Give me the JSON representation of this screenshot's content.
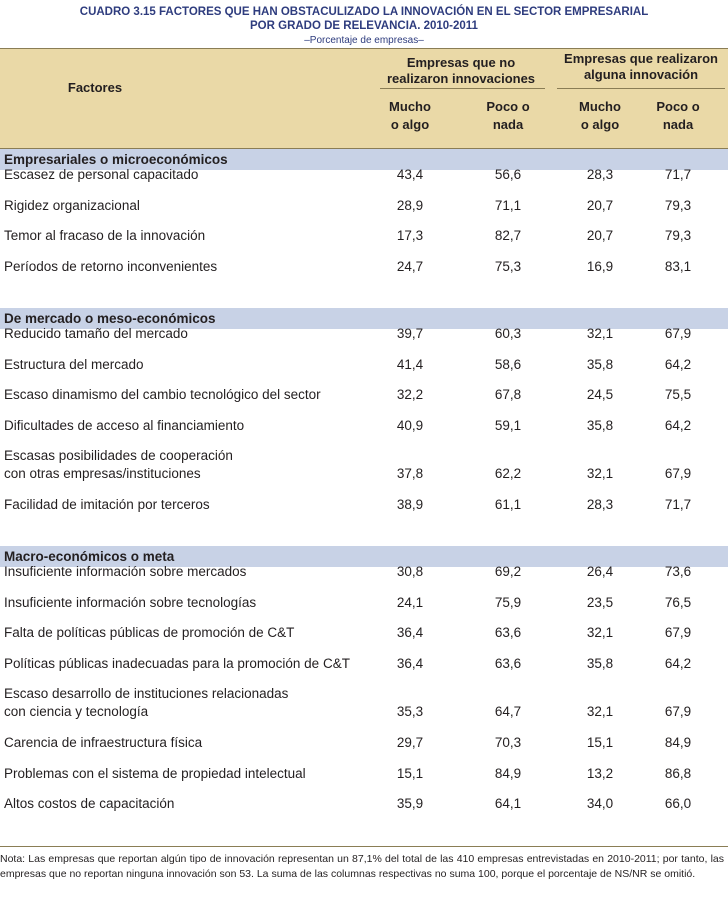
{
  "header": {
    "title": [
      "CUADRO 3.15 FACTORES QUE HAN OBSTACULIZADO LA INNOVACIÓN EN EL SECTOR EMPRESARIAL",
      "POR GRADO DE RELEVANCIA. 2010-2011"
    ],
    "subtitle": "–Porcentaje de empresas–"
  },
  "table": {
    "first_column": "Factores",
    "groups": [
      {
        "label": [
          "Empresas que no",
          "realizaron innovaciones"
        ],
        "columns": [
          [
            "Mucho",
            "o algo"
          ],
          [
            "Poco o",
            "nada"
          ]
        ]
      },
      {
        "label": [
          "Empresas que realizaron",
          "alguna innovación"
        ],
        "columns": [
          [
            "Mucho",
            "o algo"
          ],
          [
            "Poco o",
            "nada"
          ]
        ]
      }
    ],
    "sections": [
      {
        "title": "Empresariales o microeconómicos",
        "rows": [
          {
            "label": "Escasez de personal capacitado",
            "values": [
              "43,4",
              "56,6",
              "28,3",
              "71,7"
            ]
          },
          {
            "label": "Rigidez organizacional",
            "values": [
              "28,9",
              "71,1",
              "20,7",
              "79,3"
            ]
          },
          {
            "label": "Temor al fracaso de la innovación",
            "values": [
              "17,3",
              "82,7",
              "20,7",
              "79,3"
            ]
          },
          {
            "label": "Períodos de retorno inconvenientes",
            "values": [
              "24,7",
              "75,3",
              "16,9",
              "83,1"
            ]
          }
        ]
      },
      {
        "title": "De mercado o meso-económicos",
        "rows": [
          {
            "label": "Reducido tamaño del mercado",
            "values": [
              "39,7",
              "60,3",
              "32,1",
              "67,9"
            ]
          },
          {
            "label": "Estructura del mercado",
            "values": [
              "41,4",
              "58,6",
              "35,8",
              "64,2"
            ]
          },
          {
            "label": "Escaso dinamismo del cambio tecnológico del sector",
            "values": [
              "32,2",
              "67,8",
              "24,5",
              "75,5"
            ]
          },
          {
            "label": "Dificultades de acceso al financiamiento",
            "values": [
              "40,9",
              "59,1",
              "35,8",
              "64,2"
            ]
          },
          {
            "label": [
              "Escasas posibilidades de cooperación",
              "con otras empresas/instituciones"
            ],
            "values": [
              "37,8",
              "62,2",
              "32,1",
              "67,9"
            ]
          },
          {
            "label": "Facilidad de imitación por terceros",
            "values": [
              "38,9",
              "61,1",
              "28,3",
              "71,7"
            ]
          }
        ]
      },
      {
        "title": "Macro-económicos o meta",
        "rows": [
          {
            "label": "Insuficiente información sobre mercados",
            "values": [
              "30,8",
              "69,2",
              "26,4",
              "73,6"
            ]
          },
          {
            "label": "Insuficiente información sobre tecnologías",
            "values": [
              "24,1",
              "75,9",
              "23,5",
              "76,5"
            ]
          },
          {
            "label": "Falta de políticas públicas de promoción de C&T",
            "values": [
              "36,4",
              "63,6",
              "32,1",
              "67,9"
            ]
          },
          {
            "label": "Políticas públicas inadecuadas para la promoción de C&T",
            "values": [
              "36,4",
              "63,6",
              "35,8",
              "64,2"
            ]
          },
          {
            "label": [
              "Escaso desarrollo de instituciones relacionadas",
              "con ciencia y tecnología"
            ],
            "values": [
              "35,3",
              "64,7",
              "32,1",
              "67,9"
            ]
          },
          {
            "label": "Carencia de infraestructura física",
            "values": [
              "29,7",
              "70,3",
              "15,1",
              "84,9"
            ]
          },
          {
            "label": "Problemas con el sistema de propiedad intelectual",
            "values": [
              "15,1",
              "84,9",
              "13,2",
              "86,8"
            ]
          },
          {
            "label": "Altos costos de capacitación",
            "values": [
              "35,9",
              "64,1",
              "34,0",
              "66,0"
            ]
          }
        ]
      }
    ]
  },
  "note": "Nota: Las empresas que reportan algún tipo de innovación representan un 87,1% del total de las 410 empresas entrevistadas en 2010-2011; por tanto, las empresas que no reportan ninguna innovación son 53. La suma de las columnas respectivas no suma 100, porque el porcentaje de NS/NR se omitió."
}
